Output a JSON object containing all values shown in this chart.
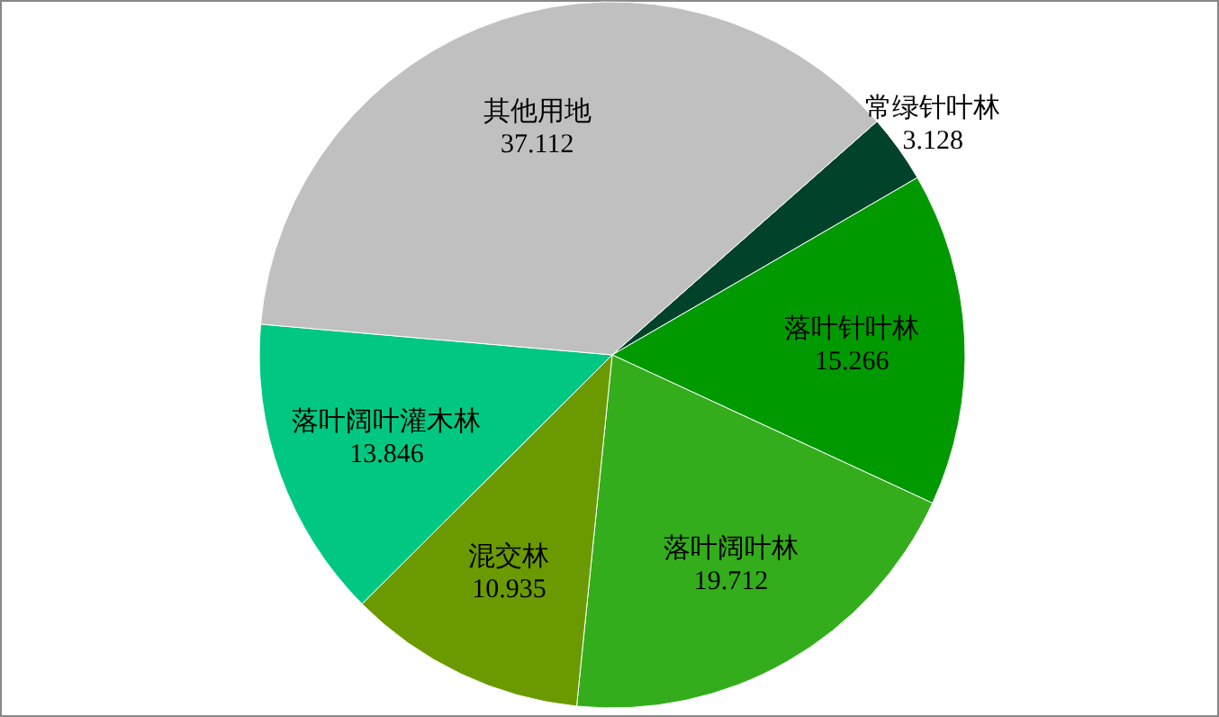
{
  "chart_data": {
    "type": "pie",
    "categories": [
      "常绿针叶林",
      "落叶针叶林",
      "落叶阔叶林",
      "混交林",
      "落叶阔叶灌木林",
      "其他用地"
    ],
    "values": [
      3.128,
      15.266,
      19.712,
      10.935,
      13.846,
      37.112
    ],
    "colors": [
      "#00432a",
      "#009a00",
      "#33ad1c",
      "#6a9a00",
      "#00c882",
      "#c0c0c0"
    ],
    "data_labels": true
  }
}
